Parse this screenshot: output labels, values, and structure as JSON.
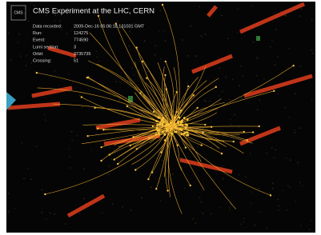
{
  "logo": "CMS",
  "title": "CMS Experiment at the LHC, CERN",
  "info": [
    {
      "label": "Data recorded:",
      "value": "2009-Dec-16 05:06:18.131031 GMT"
    },
    {
      "label": "Run:",
      "value": "124275"
    },
    {
      "label": "Event:",
      "value": "774590"
    },
    {
      "label": "Lumi section:",
      "value": "3"
    },
    {
      "label": "Orbit:",
      "value": "2735735"
    },
    {
      "label": "Crossing:",
      "value": "51"
    }
  ]
}
